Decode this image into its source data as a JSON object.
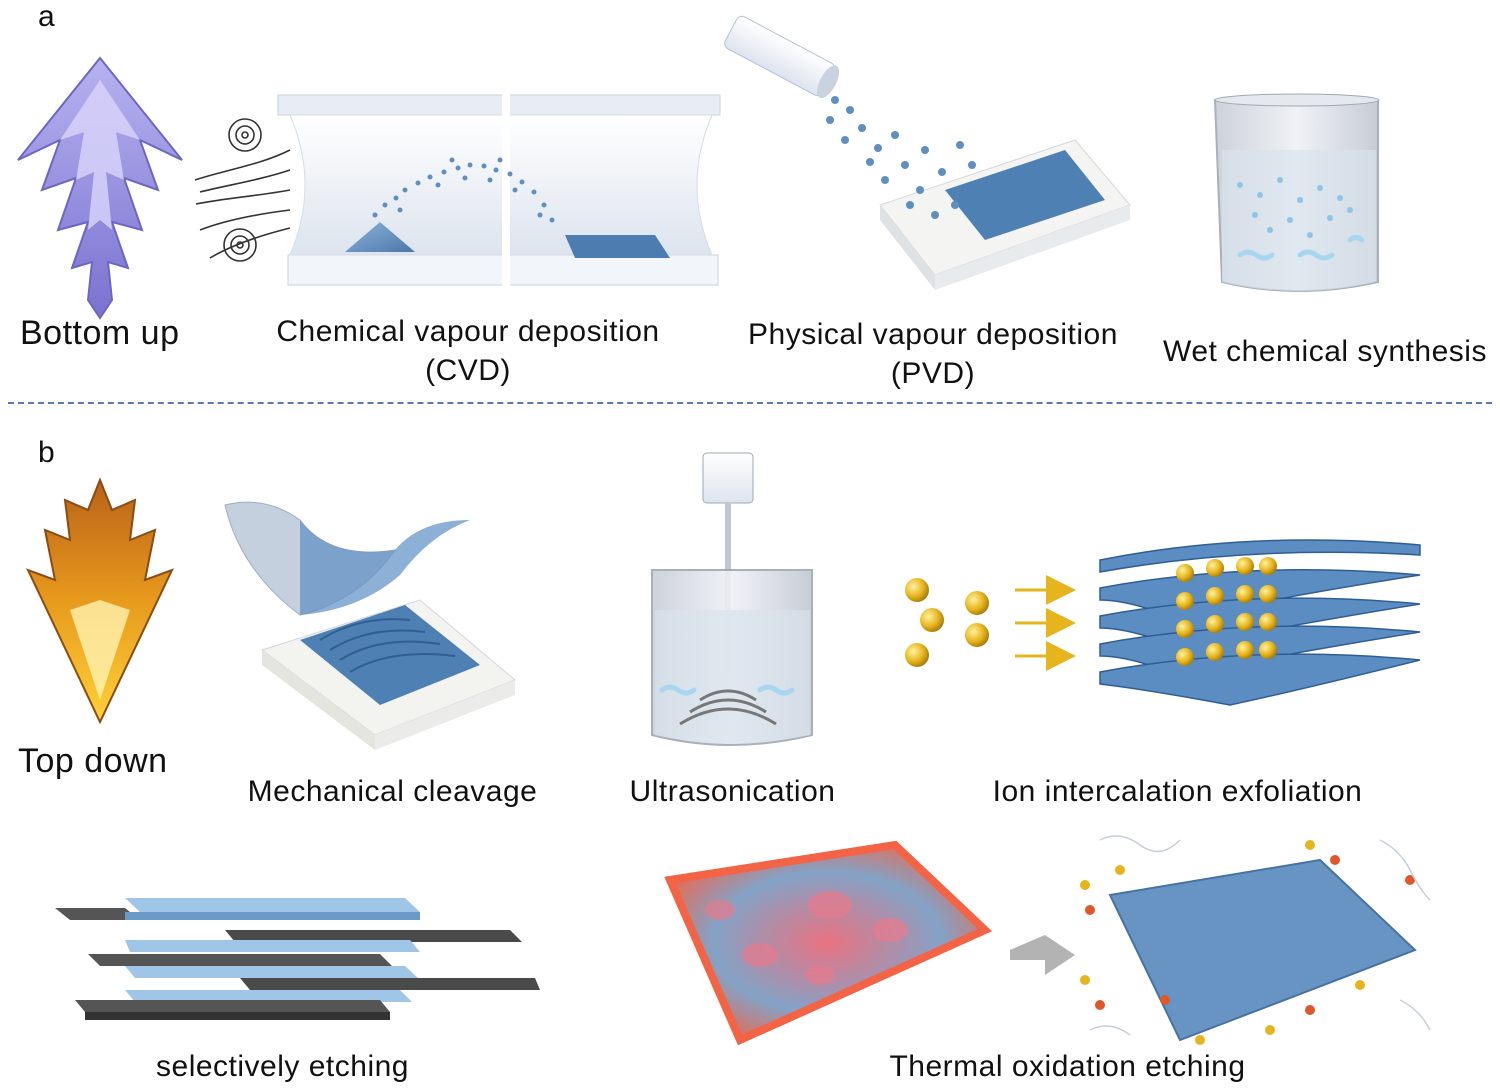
{
  "panels": {
    "a": {
      "letter": "a",
      "category": "Bottom up",
      "methods": [
        {
          "line1": "Chemical  vapour  deposition",
          "line2": "(CVD)"
        },
        {
          "line1": "Physical  vapour  deposition",
          "line2": "(PVD)"
        },
        {
          "line1": "Wet chemical  synthesis",
          "line2": ""
        }
      ]
    },
    "b": {
      "letter": "b",
      "category": "Top down",
      "methods": [
        {
          "line1": "Mechanical  cleavage"
        },
        {
          "line1": "Ultrasonication"
        },
        {
          "line1": "Ion  intercalation  exfoliation"
        },
        {
          "line1": "selectively  etching"
        },
        {
          "line1": "Thermal  oxidation  etching"
        }
      ]
    }
  },
  "colors": {
    "bottom_up_arrow": "#8b84d6",
    "top_down_arrow": "#e8a21a",
    "material_blue": "#5f8fc0",
    "particle_gold": "#e6b41c",
    "divider": "#5b79b8"
  }
}
